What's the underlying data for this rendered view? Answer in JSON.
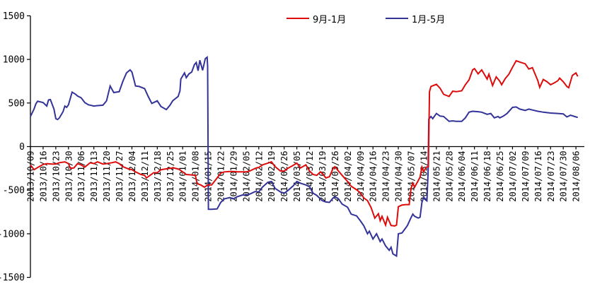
{
  "colors": {
    "background": "#ffffff",
    "axis": "#000000",
    "text": "#000000",
    "series_red": "#dd0b0b",
    "series_blue": "#333399"
  },
  "chart_data": {
    "type": "line",
    "title": "",
    "grid": false,
    "legend_position": "top-center",
    "y_axis": {
      "min": -1500,
      "max": 1500,
      "ticks": [
        1500,
        1000,
        500,
        0,
        -500,
        -1000,
        -1500
      ]
    },
    "x_axis": {
      "tick_interval_days": 7,
      "tick_labels": [
        "2013/10/09",
        "2013/10/16",
        "2013/10/23",
        "2013/10/30",
        "2013/11/06",
        "2013/11/13",
        "2013/11/20",
        "2013/11/27",
        "2013/12/04",
        "2013/12/11",
        "2013/12/18",
        "2013/12/25",
        "2014/01/01",
        "2014/01/08",
        "2014/01/15",
        "2014/01/22",
        "2014/01/29",
        "2014/02/05",
        "2014/02/12",
        "2014/02/19",
        "2014/02/26",
        "2014/03/05",
        "2014/03/12",
        "2014/03/19",
        "2014/03/26",
        "2014/04/02",
        "2014/04/09",
        "2014/04/16",
        "2014/04/23",
        "2014/04/30",
        "2014/05/07",
        "2014/05/14",
        "2014/05/21",
        "2014/05/28",
        "2014/06/04",
        "2014/06/11",
        "2014/06/18",
        "2014/06/25",
        "2014/07/02",
        "2014/07/09",
        "2014/07/16",
        "2014/07/23",
        "2014/07/30",
        "2014/08/06"
      ]
    },
    "series": [
      {
        "name": "9月-1月",
        "color": "#dd0b0b",
        "points": [
          [
            0,
            -210
          ],
          [
            2,
            -265
          ],
          [
            4,
            -240
          ],
          [
            7,
            -205
          ],
          [
            9,
            -195
          ],
          [
            12,
            -200
          ],
          [
            14,
            -200
          ],
          [
            16,
            -185
          ],
          [
            19,
            -175
          ],
          [
            21,
            -195
          ],
          [
            22,
            -250
          ],
          [
            24,
            -245
          ],
          [
            26,
            -195
          ],
          [
            28,
            -210
          ],
          [
            30,
            -235
          ],
          [
            33,
            -185
          ],
          [
            35,
            -195
          ],
          [
            37,
            -175
          ],
          [
            40,
            -200
          ],
          [
            42,
            -195
          ],
          [
            45,
            -185
          ],
          [
            47,
            -175
          ],
          [
            49,
            -195
          ],
          [
            51,
            -230
          ],
          [
            54,
            -255
          ],
          [
            56,
            -265
          ],
          [
            58,
            -290
          ],
          [
            61,
            -320
          ],
          [
            63,
            -330
          ],
          [
            64,
            -360
          ],
          [
            66,
            -330
          ],
          [
            68,
            -300
          ],
          [
            70,
            -300
          ],
          [
            72,
            -265
          ],
          [
            75,
            -255
          ],
          [
            77,
            -250
          ],
          [
            79,
            -245
          ],
          [
            82,
            -260
          ],
          [
            84,
            -290
          ],
          [
            86,
            -320
          ],
          [
            89,
            -325
          ],
          [
            91,
            -330
          ],
          [
            92,
            -425
          ],
          [
            94,
            -440
          ],
          [
            96,
            -465
          ],
          [
            98,
            -440
          ],
          [
            100,
            -440
          ],
          [
            103,
            -360
          ],
          [
            105,
            -305
          ],
          [
            107,
            -290
          ],
          [
            110,
            -285
          ],
          [
            112,
            -285
          ],
          [
            114,
            -290
          ],
          [
            117,
            -290
          ],
          [
            119,
            -290
          ],
          [
            121,
            -280
          ],
          [
            124,
            -250
          ],
          [
            126,
            -240
          ],
          [
            128,
            -210
          ],
          [
            131,
            -190
          ],
          [
            133,
            -175
          ],
          [
            135,
            -230
          ],
          [
            138,
            -280
          ],
          [
            140,
            -280
          ],
          [
            142,
            -250
          ],
          [
            145,
            -215
          ],
          [
            147,
            -190
          ],
          [
            149,
            -245
          ],
          [
            152,
            -210
          ],
          [
            154,
            -280
          ],
          [
            156,
            -320
          ],
          [
            158,
            -330
          ],
          [
            160,
            -290
          ],
          [
            161,
            -305
          ],
          [
            163,
            -360
          ],
          [
            165,
            -345
          ],
          [
            167,
            -250
          ],
          [
            168,
            -230
          ],
          [
            170,
            -280
          ],
          [
            172,
            -330
          ],
          [
            175,
            -400
          ],
          [
            177,
            -455
          ],
          [
            180,
            -495
          ],
          [
            182,
            -530
          ],
          [
            184,
            -590
          ],
          [
            186,
            -620
          ],
          [
            188,
            -700
          ],
          [
            189,
            -760
          ],
          [
            190,
            -820
          ],
          [
            192,
            -770
          ],
          [
            193,
            -850
          ],
          [
            194,
            -800
          ],
          [
            196,
            -900
          ],
          [
            197,
            -810
          ],
          [
            199,
            -905
          ],
          [
            201,
            -910
          ],
          [
            202,
            -900
          ],
          [
            203,
            -690
          ],
          [
            205,
            -670
          ],
          [
            207,
            -665
          ],
          [
            209,
            -665
          ],
          [
            210,
            -480
          ],
          [
            211,
            -420
          ],
          [
            212,
            -465
          ],
          [
            214,
            -390
          ],
          [
            215,
            -350
          ],
          [
            216,
            -235
          ],
          [
            217,
            -285
          ],
          [
            218.5,
            -235
          ],
          [
            219.6,
            -230
          ],
          [
            220.2,
            630
          ],
          [
            221,
            690
          ],
          [
            224,
            715
          ],
          [
            226,
            670
          ],
          [
            228,
            600
          ],
          [
            231,
            575
          ],
          [
            233,
            635
          ],
          [
            235,
            630
          ],
          [
            238,
            640
          ],
          [
            240,
            710
          ],
          [
            242,
            765
          ],
          [
            244,
            880
          ],
          [
            245,
            895
          ],
          [
            247,
            835
          ],
          [
            249,
            880
          ],
          [
            252,
            775
          ],
          [
            253,
            830
          ],
          [
            255,
            700
          ],
          [
            257,
            800
          ],
          [
            259,
            750
          ],
          [
            260,
            710
          ],
          [
            262,
            780
          ],
          [
            264,
            830
          ],
          [
            266,
            910
          ],
          [
            268,
            985
          ],
          [
            270,
            970
          ],
          [
            273,
            950
          ],
          [
            275,
            890
          ],
          [
            277,
            905
          ],
          [
            280,
            755
          ],
          [
            281,
            680
          ],
          [
            283,
            770
          ],
          [
            285,
            745
          ],
          [
            287,
            710
          ],
          [
            289,
            730
          ],
          [
            291,
            755
          ],
          [
            292,
            785
          ],
          [
            294,
            745
          ],
          [
            296,
            690
          ],
          [
            297,
            675
          ],
          [
            299,
            815
          ],
          [
            301,
            845
          ],
          [
            302,
            805
          ]
        ]
      },
      {
        "name": "1月-5月",
        "color": "#333399",
        "points": [
          [
            0,
            345
          ],
          [
            2,
            430
          ],
          [
            3,
            490
          ],
          [
            4,
            520
          ],
          [
            7,
            505
          ],
          [
            9,
            465
          ],
          [
            10,
            535
          ],
          [
            11,
            540
          ],
          [
            13,
            430
          ],
          [
            14,
            320
          ],
          [
            15,
            310
          ],
          [
            16,
            330
          ],
          [
            18,
            400
          ],
          [
            19,
            465
          ],
          [
            20,
            450
          ],
          [
            21,
            480
          ],
          [
            23,
            625
          ],
          [
            25,
            600
          ],
          [
            26,
            580
          ],
          [
            28,
            560
          ],
          [
            30,
            505
          ],
          [
            32,
            480
          ],
          [
            35,
            465
          ],
          [
            37,
            470
          ],
          [
            40,
            475
          ],
          [
            42,
            525
          ],
          [
            44,
            695
          ],
          [
            46,
            620
          ],
          [
            49,
            630
          ],
          [
            51,
            750
          ],
          [
            53,
            845
          ],
          [
            55,
            880
          ],
          [
            56,
            855
          ],
          [
            58,
            695
          ],
          [
            60,
            690
          ],
          [
            63,
            665
          ],
          [
            65,
            575
          ],
          [
            67,
            495
          ],
          [
            70,
            525
          ],
          [
            72,
            460
          ],
          [
            75,
            425
          ],
          [
            77,
            475
          ],
          [
            78.5,
            525
          ],
          [
            80,
            550
          ],
          [
            81.5,
            575
          ],
          [
            82.5,
            640
          ],
          [
            83,
            775
          ],
          [
            85,
            845
          ],
          [
            86,
            790
          ],
          [
            87.5,
            835
          ],
          [
            89,
            855
          ],
          [
            90.5,
            940
          ],
          [
            91.5,
            965
          ],
          [
            92.5,
            870
          ],
          [
            93.5,
            990
          ],
          [
            95,
            875
          ],
          [
            96.5,
            1008
          ],
          [
            97.5,
            1025
          ],
          [
            97.8,
            920
          ],
          [
            98.2,
            -720
          ],
          [
            100,
            -720
          ],
          [
            103,
            -715
          ],
          [
            105,
            -640
          ],
          [
            107,
            -600
          ],
          [
            110,
            -585
          ],
          [
            112,
            -600
          ],
          [
            114,
            -575
          ],
          [
            117,
            -555
          ],
          [
            119,
            -555
          ],
          [
            121,
            -545
          ],
          [
            124,
            -515
          ],
          [
            126,
            -520
          ],
          [
            128,
            -465
          ],
          [
            131,
            -410
          ],
          [
            133,
            -400
          ],
          [
            135,
            -480
          ],
          [
            138,
            -520
          ],
          [
            140,
            -535
          ],
          [
            142,
            -505
          ],
          [
            145,
            -450
          ],
          [
            147,
            -400
          ],
          [
            149,
            -420
          ],
          [
            152,
            -440
          ],
          [
            154,
            -460
          ],
          [
            156,
            -535
          ],
          [
            158,
            -560
          ],
          [
            160,
            -600
          ],
          [
            161,
            -620
          ],
          [
            163,
            -635
          ],
          [
            165,
            -640
          ],
          [
            167,
            -590
          ],
          [
            168,
            -575
          ],
          [
            170,
            -600
          ],
          [
            172,
            -660
          ],
          [
            175,
            -695
          ],
          [
            177,
            -775
          ],
          [
            180,
            -795
          ],
          [
            182,
            -850
          ],
          [
            184,
            -910
          ],
          [
            186,
            -1000
          ],
          [
            187,
            -970
          ],
          [
            189,
            -1060
          ],
          [
            191,
            -1000
          ],
          [
            193,
            -1090
          ],
          [
            194,
            -1060
          ],
          [
            196,
            -1140
          ],
          [
            198,
            -1190
          ],
          [
            199,
            -1155
          ],
          [
            200,
            -1230
          ],
          [
            202,
            -1255
          ],
          [
            203,
            -1000
          ],
          [
            205,
            -990
          ],
          [
            207,
            -935
          ],
          [
            208,
            -905
          ],
          [
            210,
            -815
          ],
          [
            211,
            -775
          ],
          [
            212,
            -800
          ],
          [
            214,
            -820
          ],
          [
            215,
            -810
          ],
          [
            216,
            -640
          ],
          [
            217,
            -580
          ],
          [
            218.8,
            -620
          ],
          [
            219.4,
            -300
          ],
          [
            219.8,
            315
          ],
          [
            221,
            345
          ],
          [
            222,
            320
          ],
          [
            224,
            380
          ],
          [
            226,
            350
          ],
          [
            228,
            345
          ],
          [
            231,
            290
          ],
          [
            233,
            295
          ],
          [
            235,
            290
          ],
          [
            238,
            290
          ],
          [
            240,
            330
          ],
          [
            242,
            395
          ],
          [
            244,
            405
          ],
          [
            247,
            400
          ],
          [
            249,
            395
          ],
          [
            252,
            370
          ],
          [
            254,
            380
          ],
          [
            256,
            330
          ],
          [
            258,
            345
          ],
          [
            259,
            330
          ],
          [
            261,
            350
          ],
          [
            263,
            380
          ],
          [
            266,
            450
          ],
          [
            268,
            455
          ],
          [
            270,
            430
          ],
          [
            273,
            415
          ],
          [
            275,
            430
          ],
          [
            277,
            420
          ],
          [
            280,
            405
          ],
          [
            283,
            395
          ],
          [
            287,
            385
          ],
          [
            291,
            380
          ],
          [
            294,
            375
          ],
          [
            296,
            340
          ],
          [
            298,
            360
          ],
          [
            301,
            340
          ],
          [
            302,
            335
          ]
        ]
      }
    ]
  }
}
